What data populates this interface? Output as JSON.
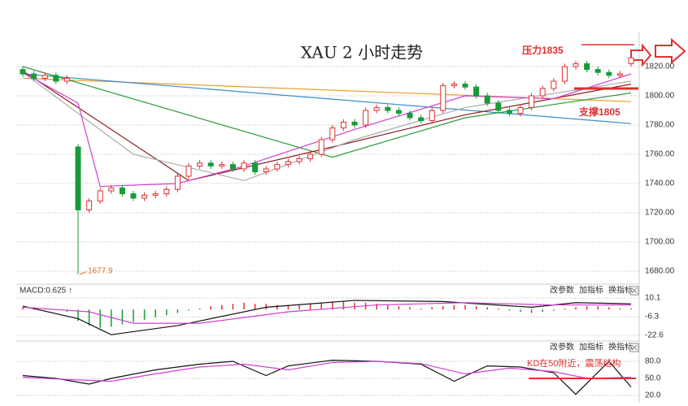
{
  "chart_data": [
    {
      "type": "candlestick",
      "title": "XAU 2 小时走势",
      "up_color": "#e03030",
      "down_color": "#1a9a3a",
      "open": [
        1818,
        1815,
        1812,
        1814,
        1810,
        1765,
        1722,
        1728,
        1735,
        1737,
        1733,
        1730,
        1732,
        1733,
        1736,
        1745,
        1752,
        1754,
        1752,
        1753,
        1750,
        1754,
        1748,
        1750,
        1753,
        1755,
        1757,
        1760,
        1770,
        1778,
        1782,
        1780,
        1790,
        1792,
        1790,
        1788,
        1785,
        1783,
        1790,
        1807,
        1808,
        1806,
        1800,
        1795,
        1790,
        1788,
        1792,
        1800,
        1805,
        1810,
        1820,
        1822,
        1818,
        1816,
        1814,
        1822
      ],
      "high": [
        1820,
        1817,
        1816,
        1816,
        1814,
        1767,
        1730,
        1737,
        1739,
        1739,
        1735,
        1734,
        1735,
        1738,
        1747,
        1754,
        1756,
        1756,
        1755,
        1755,
        1756,
        1756,
        1752,
        1755,
        1757,
        1759,
        1762,
        1772,
        1780,
        1784,
        1784,
        1792,
        1794,
        1794,
        1792,
        1790,
        1787,
        1792,
        1809,
        1810,
        1810,
        1808,
        1802,
        1797,
        1792,
        1794,
        1802,
        1807,
        1812,
        1822,
        1824,
        1824,
        1820,
        1818,
        1817,
        1828
      ],
      "low": [
        1813,
        1810,
        1810,
        1808,
        1808,
        1677.9,
        1720,
        1726,
        1733,
        1731,
        1728,
        1728,
        1730,
        1731,
        1734,
        1743,
        1750,
        1750,
        1750,
        1748,
        1748,
        1746,
        1746,
        1748,
        1751,
        1753,
        1755,
        1758,
        1768,
        1776,
        1778,
        1778,
        1788,
        1788,
        1786,
        1783,
        1781,
        1781,
        1788,
        1805,
        1804,
        1798,
        1793,
        1788,
        1786,
        1786,
        1790,
        1798,
        1803,
        1808,
        1818,
        1816,
        1814,
        1812,
        1812,
        1820
      ],
      "close": [
        1815,
        1812,
        1814,
        1810,
        1812,
        1722,
        1728,
        1735,
        1737,
        1733,
        1730,
        1732,
        1733,
        1736,
        1745,
        1752,
        1754,
        1752,
        1753,
        1750,
        1754,
        1748,
        1750,
        1753,
        1755,
        1757,
        1760,
        1770,
        1778,
        1782,
        1780,
        1790,
        1792,
        1790,
        1788,
        1785,
        1783,
        1790,
        1807,
        1808,
        1806,
        1800,
        1795,
        1790,
        1788,
        1792,
        1800,
        1805,
        1810,
        1820,
        1822,
        1818,
        1816,
        1814,
        1815,
        1826
      ],
      "ylim": [
        1670,
        1840
      ],
      "yticks": [
        {
          "value": 1820,
          "label": "1820.00"
        },
        {
          "value": 1800,
          "label": "1800.00"
        },
        {
          "value": 1780,
          "label": "1780.00"
        },
        {
          "value": 1760,
          "label": "1760.00"
        },
        {
          "value": 1740,
          "label": "1740.00"
        },
        {
          "value": 1720,
          "label": "1720.00"
        },
        {
          "value": 1700,
          "label": "1700.00"
        },
        {
          "value": 1680,
          "label": "1680.00"
        }
      ],
      "lines": [
        {
          "color": "#e8a030",
          "x": [
            0,
            55
          ],
          "values": [
            1812,
            1796
          ]
        },
        {
          "color": "#3a8fc8",
          "x": [
            0,
            55
          ],
          "values": [
            1815,
            1781
          ]
        },
        {
          "color": "#2e9a3a",
          "x": [
            0,
            28,
            40,
            55
          ],
          "values": [
            1820,
            1758,
            1785,
            1802
          ]
        },
        {
          "color": "#8b1a1a",
          "x": [
            0,
            15,
            28,
            40,
            55
          ],
          "values": [
            1817,
            1742,
            1765,
            1787,
            1808
          ]
        },
        {
          "color": "#aaaaaa",
          "x": [
            0,
            10,
            20,
            30,
            40,
            55
          ],
          "values": [
            1816,
            1760,
            1742,
            1770,
            1792,
            1810
          ]
        },
        {
          "color": "#d040d0",
          "x": [
            0,
            5,
            7,
            14,
            20,
            30,
            40,
            48,
            55
          ],
          "values": [
            1816,
            1795,
            1738,
            1740,
            1752,
            1777,
            1800,
            1798,
            1815
          ]
        }
      ],
      "annotations": [
        {
          "text": "压力1835",
          "value": 1835,
          "color": "#e03030"
        },
        {
          "text": "支撑1805",
          "value": 1805,
          "color": "#e03030"
        }
      ]
    },
    {
      "type": "macd",
      "label": "MACD:0.625 ↑",
      "menu": [
        "改参数",
        "加指标",
        "换指标"
      ],
      "histogram": [
        2,
        2,
        1,
        0,
        -2,
        -10,
        -14,
        -16,
        -15,
        -13,
        -11,
        -9,
        -7,
        -5,
        -3,
        -1,
        1,
        3,
        4,
        5,
        6,
        5,
        5,
        4,
        4,
        4,
        5,
        6,
        7,
        7,
        6,
        6,
        5,
        4,
        3,
        2,
        1,
        2,
        3,
        4,
        4,
        3,
        2,
        1,
        -1,
        -2,
        -3,
        -2,
        -1,
        1,
        2,
        3,
        3,
        2,
        1,
        1
      ],
      "ylim": [
        -26,
        14
      ],
      "yticks": [
        10.1,
        -6.3,
        -22.6
      ],
      "lines": [
        {
          "color": "#111111",
          "x": [
            0,
            5,
            8,
            14,
            22,
            30,
            38,
            46,
            50,
            55
          ],
          "values": [
            3,
            -8,
            -22,
            -14,
            2,
            8,
            7,
            2,
            6,
            5
          ]
        },
        {
          "color": "#d040d0",
          "x": [
            0,
            6,
            10,
            16,
            24,
            32,
            40,
            48,
            55
          ],
          "values": [
            2,
            -2,
            -12,
            -12,
            -2,
            4,
            6,
            4,
            4
          ]
        }
      ]
    },
    {
      "type": "kd",
      "menu": [
        "改参数",
        "加指标",
        "换指标"
      ],
      "ylim": [
        10,
        100
      ],
      "yticks": [
        {
          "value": 80,
          "label": "80.0"
        },
        {
          "value": 50,
          "label": "50.0"
        },
        {
          "value": 20,
          "label": "20.0"
        }
      ],
      "lines": [
        {
          "color": "#111111",
          "x": [
            0,
            3,
            6,
            8,
            12,
            16,
            19,
            22,
            24,
            28,
            32,
            36,
            39,
            42,
            45,
            48,
            50,
            53,
            55
          ],
          "values": [
            55,
            50,
            40,
            50,
            65,
            75,
            80,
            55,
            72,
            82,
            80,
            75,
            45,
            72,
            70,
            60,
            22,
            80,
            35
          ]
        },
        {
          "color": "#d040d0",
          "x": [
            0,
            4,
            8,
            12,
            16,
            20,
            24,
            28,
            32,
            36,
            40,
            44,
            48,
            51,
            55
          ],
          "values": [
            52,
            48,
            45,
            58,
            70,
            75,
            65,
            78,
            80,
            76,
            58,
            68,
            62,
            50,
            52
          ]
        }
      ],
      "annotation": {
        "text": "KD在50附近，震荡结构",
        "value": 50,
        "color": "#e03030"
      }
    }
  ]
}
